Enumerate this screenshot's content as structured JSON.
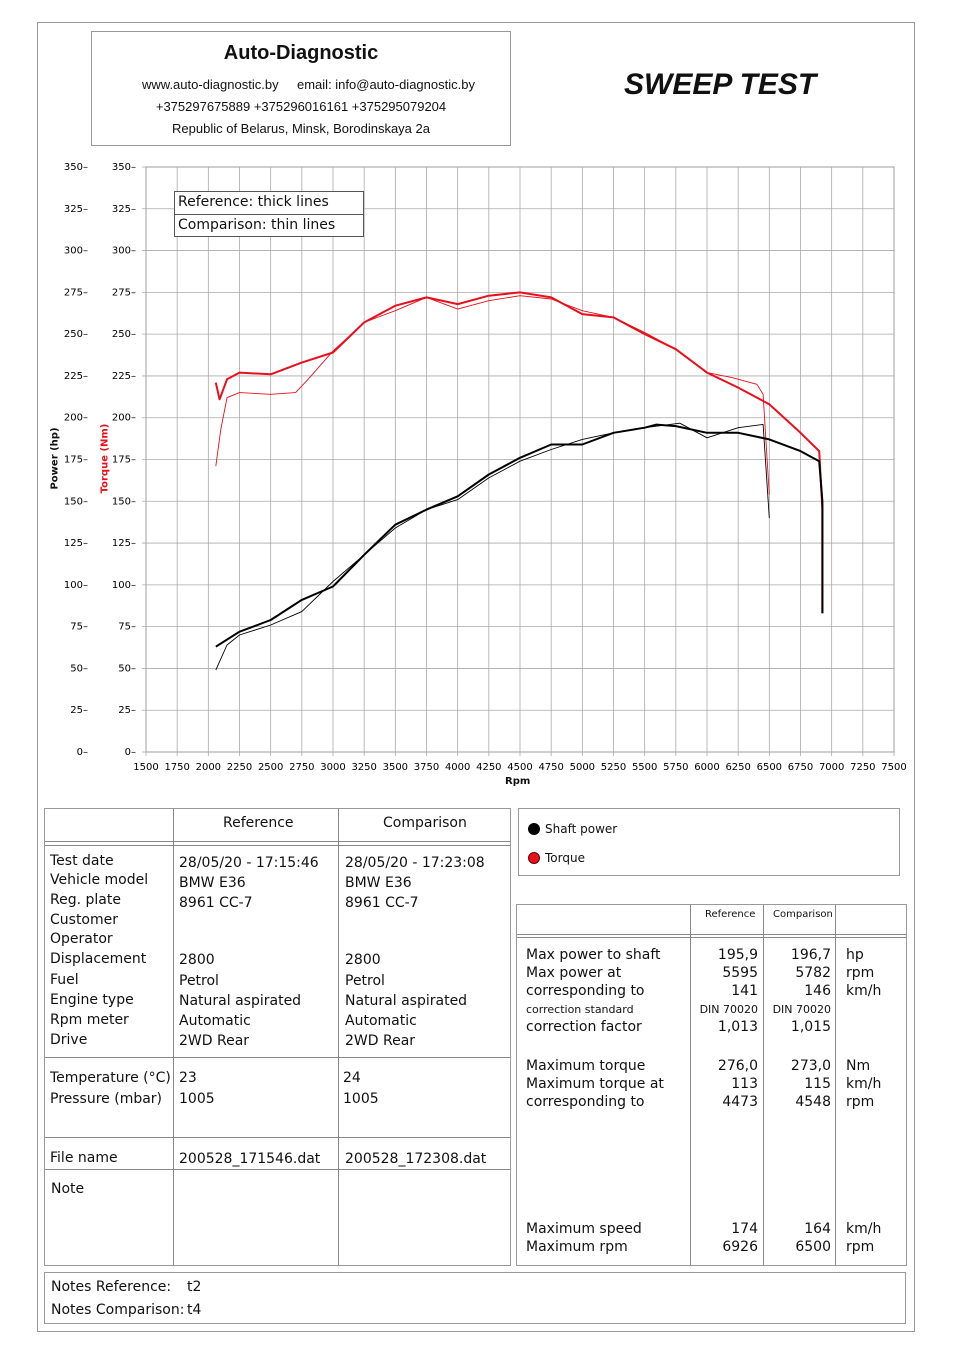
{
  "header": {
    "company": "Auto-Diagnostic",
    "web": "www.auto-diagnostic.by",
    "email": "email: info@auto-diagnostic.by",
    "phones": "+375297675889  +375296016161  +375295079204",
    "address": "Republic of Belarus, Minsk, Borodinskaya 2a",
    "title": "SWEEP TEST"
  },
  "chart_data": {
    "type": "line",
    "xlabel": "Rpm",
    "ylabel_left": "Power (hp)",
    "ylabel_right": "Torque (Nm)",
    "xlim": [
      1500,
      7500
    ],
    "ylim": [
      0,
      350
    ],
    "xticks": [
      1500,
      1750,
      2000,
      2250,
      2500,
      2750,
      3000,
      3250,
      3500,
      3750,
      4000,
      4250,
      4500,
      4750,
      5000,
      5250,
      5500,
      5750,
      6000,
      6250,
      6500,
      6750,
      7000,
      7250,
      7500
    ],
    "yticks": [
      0,
      25,
      50,
      75,
      100,
      125,
      150,
      175,
      200,
      225,
      250,
      275,
      300,
      325,
      350
    ],
    "legend": [
      "Reference: thick lines",
      "Comparison: thin lines"
    ],
    "series": [
      {
        "name": "Torque reference",
        "color": "#e8101c",
        "width": 2,
        "x": [
          2060,
          2090,
          2150,
          2250,
          2500,
          2750,
          3000,
          3250,
          3500,
          3750,
          4000,
          4250,
          4500,
          4750,
          5000,
          5250,
          5500,
          5750,
          6000,
          6250,
          6500,
          6750,
          6900,
          6926,
          6926
        ],
        "y": [
          221,
          211,
          223,
          227,
          226,
          233,
          239,
          257,
          267,
          272,
          268,
          273,
          275,
          272,
          262,
          260,
          250,
          241,
          227,
          218,
          208,
          191,
          180,
          145,
          83
        ]
      },
      {
        "name": "Torque comparison",
        "color": "#e8101c",
        "width": 0.9,
        "x": [
          2060,
          2100,
          2150,
          2250,
          2500,
          2700,
          2800,
          3000,
          3250,
          3500,
          3750,
          4000,
          4250,
          4500,
          4750,
          5000,
          5250,
          5500,
          5750,
          6000,
          6200,
          6400,
          6450,
          6500
        ],
        "y": [
          171,
          193,
          212,
          215,
          214,
          215,
          223,
          240,
          257,
          264,
          272,
          265,
          270,
          273,
          271,
          264,
          260,
          251,
          241,
          227,
          224,
          220,
          214,
          154
        ]
      },
      {
        "name": "Power reference",
        "color": "#000000",
        "width": 2,
        "x": [
          2060,
          2250,
          2500,
          2750,
          3000,
          3250,
          3500,
          3750,
          4000,
          4250,
          4500,
          4750,
          5000,
          5250,
          5500,
          5595,
          5750,
          6000,
          6250,
          6500,
          6750,
          6900,
          6926,
          6926
        ],
        "y": [
          63,
          72,
          79,
          91,
          99,
          118,
          136,
          145,
          153,
          166,
          176,
          184,
          184,
          191,
          194,
          195.9,
          195,
          191,
          191,
          187,
          180,
          174,
          150,
          83
        ]
      },
      {
        "name": "Power comparison",
        "color": "#000000",
        "width": 0.9,
        "x": [
          2060,
          2150,
          2250,
          2500,
          2750,
          3000,
          3250,
          3500,
          3750,
          4000,
          4250,
          4500,
          4750,
          5000,
          5250,
          5500,
          5782,
          6000,
          6250,
          6450,
          6500
        ],
        "y": [
          49,
          64,
          70,
          76,
          84,
          102,
          118,
          134,
          145,
          151,
          164,
          174,
          181,
          187,
          191,
          194,
          196.7,
          188,
          194,
          196,
          140
        ]
      }
    ]
  },
  "info": {
    "col_ref": "Reference",
    "col_cmp": "Comparison",
    "labels": [
      "Test date",
      "Vehicle model",
      "Reg. plate",
      "Customer",
      "Operator",
      "Displacement",
      "Fuel",
      "Engine type",
      "Rpm meter",
      "Drive"
    ],
    "ref": [
      "28/05/20 - 17:15:46",
      "BMW E36",
      "8961 CC-7",
      "",
      "",
      "2800",
      "Petrol",
      "Natural aspirated",
      "Automatic",
      "2WD Rear"
    ],
    "cmp": [
      "28/05/20 - 17:23:08",
      "BMW E36",
      "8961 CC-7",
      "",
      "",
      "2800",
      "Petrol",
      "Natural aspirated",
      "Automatic",
      "2WD Rear"
    ],
    "env_labels": [
      "Temperature (°C)",
      "Pressure (mbar)"
    ],
    "env_ref": [
      "23",
      "1005"
    ],
    "env_cmp": [
      "24",
      "1005"
    ],
    "file_label": "File name",
    "file_ref": "200528_171546.dat",
    "file_cmp": "200528_172308.dat",
    "note_label": "Note"
  },
  "legend2": {
    "power": "Shaft power",
    "torque": "Torque",
    "power_color": "#000000",
    "torque_color": "#e8101c"
  },
  "results": {
    "col_ref": "Reference",
    "col_cmp": "Comparison",
    "rows": [
      {
        "label": "Max power to shaft",
        "ref": "195,9",
        "cmp": "196,7",
        "unit": "hp"
      },
      {
        "label": "Max power at",
        "ref": "5595",
        "cmp": "5782",
        "unit": "rpm"
      },
      {
        "label": "corresponding to",
        "ref": "141",
        "cmp": "146",
        "unit": "km/h"
      },
      {
        "label": "correction standard",
        "ref": "DIN 70020",
        "cmp": "DIN 70020",
        "unit": "",
        "small": true
      },
      {
        "label": "correction factor",
        "ref": "1,013",
        "cmp": "1,015",
        "unit": ""
      }
    ],
    "rows2": [
      {
        "label": "Maximum torque",
        "ref": "276,0",
        "cmp": "273,0",
        "unit": "Nm"
      },
      {
        "label": "Maximum torque at",
        "ref": "113",
        "cmp": "115",
        "unit": "km/h"
      },
      {
        "label": "corresponding to",
        "ref": "4473",
        "cmp": "4548",
        "unit": "rpm"
      }
    ],
    "rows3": [
      {
        "label": "Maximum speed",
        "ref": "174",
        "cmp": "164",
        "unit": "km/h"
      },
      {
        "label": "Maximum rpm",
        "ref": "6926",
        "cmp": "6500",
        "unit": "rpm"
      }
    ]
  },
  "notes": {
    "ref_label": "Notes Reference:",
    "ref": "t2",
    "cmp_label": "Notes Comparison:",
    "cmp": "t4"
  }
}
